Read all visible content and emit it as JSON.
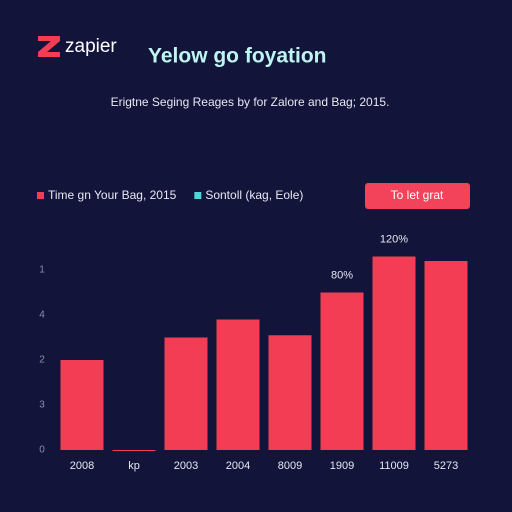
{
  "chart_data": {
    "type": "bar",
    "logo": "zapier",
    "title": "Yelow go foyation",
    "subtitle": "Erigtne Seging Reages by for Zalore and Bag; 2015.",
    "button": "To let grat",
    "categories": [
      "2008",
      "kp",
      "2003",
      "2004",
      "8009",
      "1909",
      "11009",
      "5273"
    ],
    "series": [
      {
        "name": "Time gn Your Bag, 2015",
        "color": "#f23d55",
        "values": [
          2.0,
          0,
          2.5,
          2.9,
          2.55,
          3.5,
          4.3,
          4.2
        ]
      },
      {
        "name": "Sontoll (kag, Eole)",
        "color": "#4fd6d6",
        "values": [
          null,
          null,
          null,
          null,
          null,
          null,
          null,
          null
        ]
      }
    ],
    "annotations": [
      {
        "text": "80%",
        "category": 5
      },
      {
        "text": "120%",
        "category": 6
      }
    ],
    "ylim": [
      0,
      5
    ],
    "yticks": [
      {
        "value": 0,
        "label": "0"
      },
      {
        "value": 1,
        "label": "3"
      },
      {
        "value": 2,
        "label": "2"
      },
      {
        "value": 3,
        "label": "4"
      },
      {
        "value": 4,
        "label": "1"
      }
    ],
    "grid": false
  }
}
